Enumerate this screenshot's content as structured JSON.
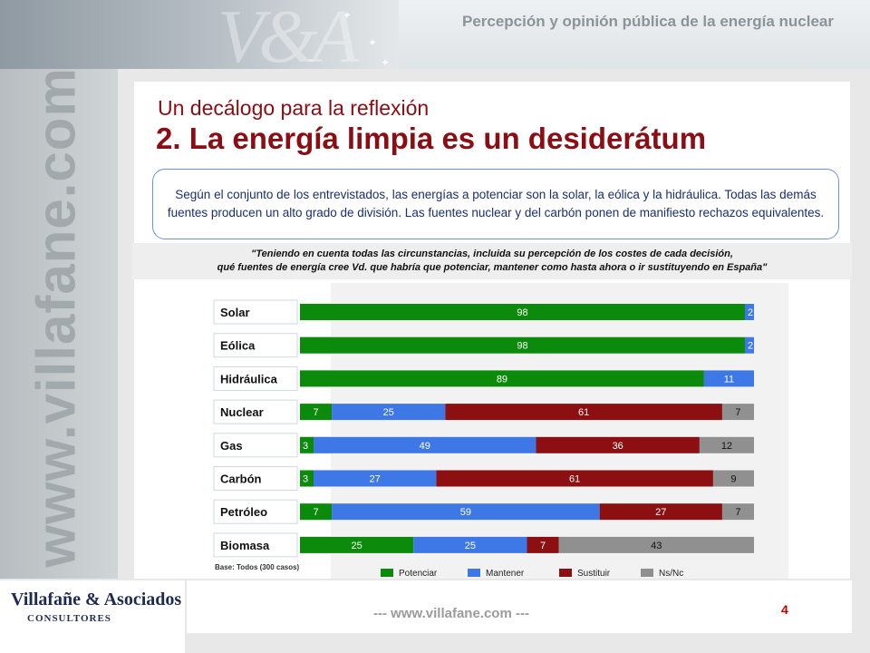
{
  "header": {
    "title": "Percepción y opinión pública de la energía nuclear"
  },
  "left_band": {
    "url": "www.villafane.com"
  },
  "slide": {
    "subtitle": "Un decálogo para la reflexión",
    "title": "2. La energía limpia es un desiderátum",
    "summary": "Según el conjunto de los entrevistados, las energías a potenciar son la solar, la eólica y la hidráulica. Todas las demás fuentes producen un alto grado de división. Las fuentes nuclear y del carbón ponen de manifiesto rechazos equivalentes.",
    "question_line1": "\"Teniendo en cuenta todas las circunstancias, incluida su percepción de los costes de cada decisión,",
    "question_line2": "qué fuentes de energía cree Vd. que habría que potenciar, mantener como hasta ahora o ir sustituyendo en España\""
  },
  "chart_data": {
    "type": "bar",
    "orientation": "horizontal",
    "stacked": true,
    "xlim": [
      0,
      100
    ],
    "categories": [
      "Solar",
      "Eólica",
      "Hidráulica",
      "Nuclear",
      "Gas",
      "Carbón",
      "Petróleo",
      "Biomasa"
    ],
    "series": [
      {
        "name": "Potenciar",
        "color": "#0b8a0b",
        "values": [
          98,
          98,
          89,
          7,
          3,
          3,
          7,
          25
        ]
      },
      {
        "name": "Mantener",
        "color": "#3d78e6",
        "values": [
          2,
          2,
          11,
          25,
          49,
          27,
          59,
          25
        ]
      },
      {
        "name": "Sustituir",
        "color": "#8c0f12",
        "values": [
          0,
          0,
          0,
          61,
          36,
          61,
          27,
          7
        ]
      },
      {
        "name": "Ns/Nc",
        "color": "#909090",
        "values": [
          0,
          0,
          0,
          7,
          12,
          9,
          7,
          43
        ]
      }
    ],
    "base_note": "Base: Todos (300 casos)",
    "legend_position": "bottom"
  },
  "footer": {
    "logo_name": "Villafañe & Asociados",
    "logo_sub": "CONSULTORES",
    "url": "--- www.villafane.com ---",
    "page_number": "4"
  }
}
